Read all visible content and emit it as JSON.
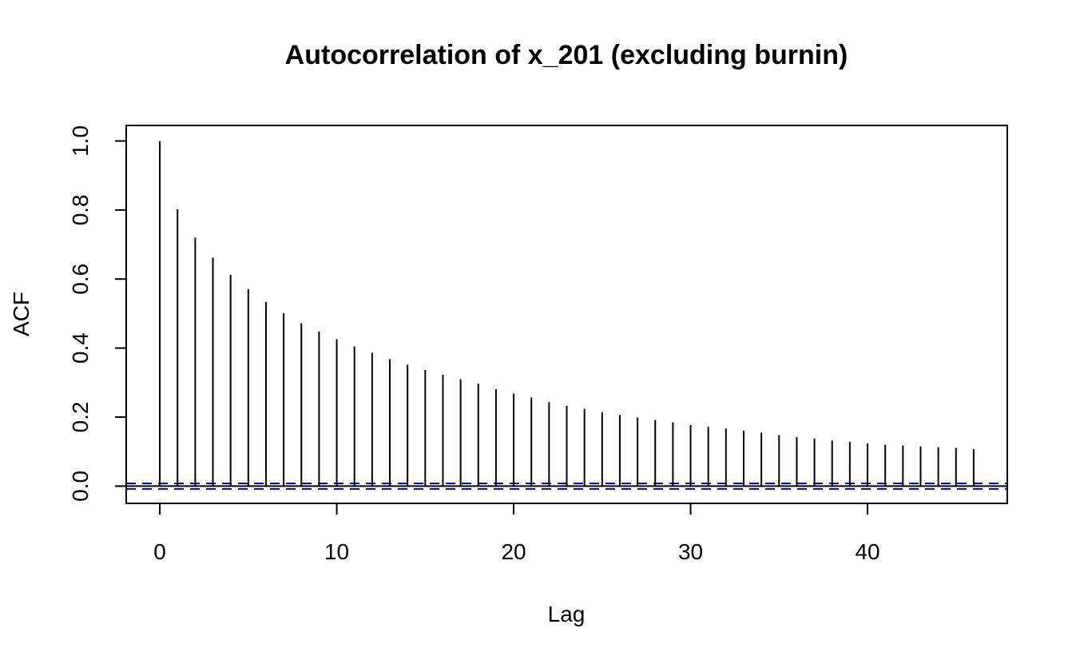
{
  "chart_data": {
    "type": "bar",
    "title": "Autocorrelation of x_201 (excluding burnin)",
    "xlabel": "Lag",
    "ylabel": "ACF",
    "xlim": [
      -1.9,
      47.9
    ],
    "ylim": [
      -0.05,
      1.045
    ],
    "x_ticks": [
      0,
      10,
      20,
      30,
      40
    ],
    "x_tick_labels": [
      "0",
      "10",
      "20",
      "30",
      "40"
    ],
    "y_ticks": [
      0.0,
      0.2,
      0.4,
      0.6,
      0.8,
      1.0
    ],
    "y_tick_labels": [
      "0.0",
      "0.2",
      "0.4",
      "0.6",
      "0.8",
      "1.0"
    ],
    "confidence_bounds": [
      0.008,
      -0.008
    ],
    "grid": false,
    "colors": {
      "bars": "#000000",
      "confidence": "#0000cc",
      "zero_line": "#000000"
    },
    "lags": [
      0,
      1,
      2,
      3,
      4,
      5,
      6,
      7,
      8,
      9,
      10,
      11,
      12,
      13,
      14,
      15,
      16,
      17,
      18,
      19,
      20,
      21,
      22,
      23,
      24,
      25,
      26,
      27,
      28,
      29,
      30,
      31,
      32,
      33,
      34,
      35,
      36,
      37,
      38,
      39,
      40,
      41,
      42,
      43,
      44,
      45,
      46
    ],
    "values": [
      1.0,
      0.802,
      0.72,
      0.662,
      0.612,
      0.571,
      0.534,
      0.501,
      0.472,
      0.448,
      0.426,
      0.405,
      0.386,
      0.368,
      0.352,
      0.337,
      0.323,
      0.31,
      0.297,
      0.281,
      0.268,
      0.257,
      0.243,
      0.233,
      0.224,
      0.214,
      0.206,
      0.199,
      0.192,
      0.185,
      0.177,
      0.172,
      0.167,
      0.161,
      0.155,
      0.148,
      0.142,
      0.137,
      0.132,
      0.128,
      0.124,
      0.12,
      0.118,
      0.115,
      0.113,
      0.111,
      0.107
    ]
  }
}
